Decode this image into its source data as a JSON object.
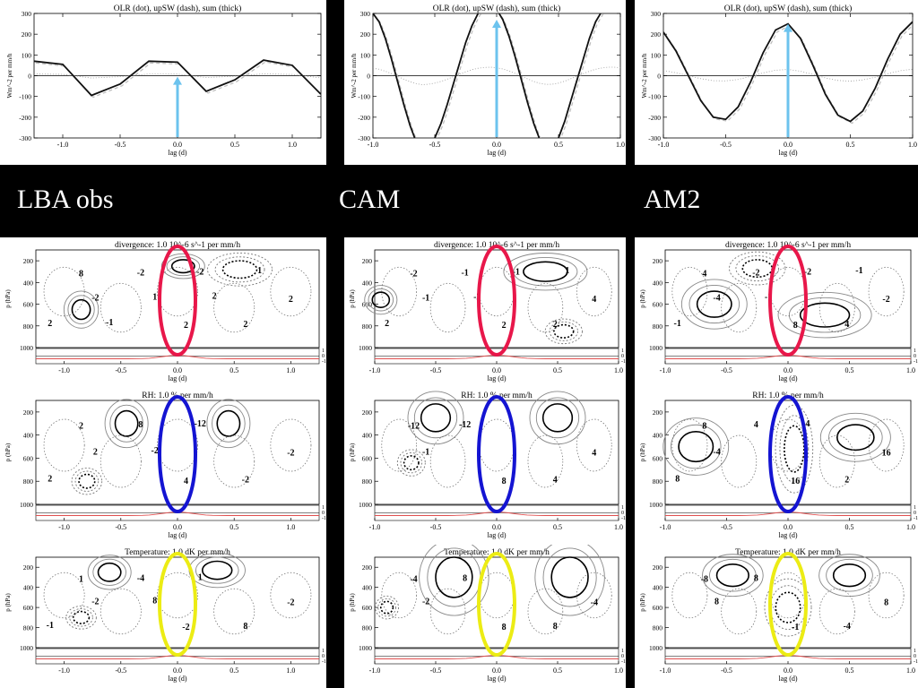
{
  "labels": {
    "col1": "LBA obs",
    "col2": "CAM",
    "col3": "AM2"
  },
  "colors": {
    "background": "#000000",
    "arrow": "#6cc3ee",
    "ellipse_div": "#e8174a",
    "ellipse_rh": "#1414d2",
    "ellipse_temp": "#ecec14",
    "red_line": "#e05050"
  },
  "chart_data": [
    {
      "type": "line",
      "name": "olr_obs",
      "title": "OLR (dot), upSW (dash), sum (thick)",
      "xlabel": "lag (d)",
      "ylabel": "Wm^-2 per mm/h",
      "xlim": [
        -1.25,
        1.25
      ],
      "ylim": [
        -300,
        300
      ],
      "xticks": [
        "-1.0",
        "-0.5",
        "0.0",
        "0.5",
        "1.0"
      ],
      "yticks": [
        "300",
        "200",
        "100",
        "0",
        "-100",
        "-200",
        "-300"
      ],
      "x": [
        -1.25,
        -1.0,
        -0.75,
        -0.5,
        -0.25,
        0.0,
        0.25,
        0.5,
        0.75,
        1.0,
        1.25
      ],
      "series": [
        {
          "values": [
            70,
            55,
            -95,
            -40,
            70,
            65,
            -75,
            -20,
            75,
            50,
            -90
          ]
        }
      ],
      "arrow_x": 0.0
    },
    {
      "type": "line",
      "name": "olr_cam",
      "title": "OLR (dot), upSW (dash), sum (thick)",
      "xlabel": "lag (d)",
      "ylabel": "Wm^-2 per mm/h",
      "xlim": [
        -1.0,
        1.0
      ],
      "ylim": [
        -300,
        300
      ],
      "xticks": [
        "-1.0",
        "-0.5",
        "0.0",
        "0.5",
        "1.0"
      ],
      "yticks": [
        "300",
        "200",
        "100",
        "0",
        "-100",
        "-200",
        "-300"
      ],
      "x": [
        -1.0,
        -0.95,
        -0.9,
        -0.85,
        -0.8,
        -0.75,
        -0.7,
        -0.65,
        -0.6,
        -0.55,
        -0.5,
        -0.45,
        -0.4,
        -0.35,
        -0.3,
        -0.25,
        -0.2,
        -0.15,
        -0.1,
        -0.05,
        0.0,
        0.05,
        0.1,
        0.15,
        0.2,
        0.25,
        0.3,
        0.35,
        0.4,
        0.45,
        0.5,
        0.55,
        0.6,
        0.65,
        0.7,
        0.75,
        0.8,
        0.85,
        0.9,
        0.95,
        1.0
      ],
      "series": [
        {
          "values": [
            300,
            260,
            180,
            80,
            -30,
            -140,
            -240,
            -320,
            -360,
            -340,
            -300,
            -230,
            -140,
            -40,
            60,
            160,
            240,
            300,
            330,
            340,
            320,
            270,
            190,
            90,
            -20,
            -130,
            -230,
            -310,
            -350,
            -340,
            -300,
            -220,
            -120,
            -20,
            80,
            180,
            260,
            310,
            340,
            340,
            320
          ]
        }
      ],
      "arrow_x": 0.0
    },
    {
      "type": "line",
      "name": "olr_am2",
      "title": "OLR (dot), upSW (dash), sum (thick)",
      "xlabel": "lag (d)",
      "ylabel": "Wm^-2 per mm/h",
      "xlim": [
        -1.0,
        1.0
      ],
      "ylim": [
        -300,
        300
      ],
      "xticks": [
        "-1.0",
        "-0.5",
        "0.0",
        "0.5",
        "1.0"
      ],
      "yticks": [
        "300",
        "200",
        "100",
        "0",
        "-100",
        "-200",
        "-300"
      ],
      "x": [
        -1.0,
        -0.9,
        -0.8,
        -0.7,
        -0.6,
        -0.5,
        -0.4,
        -0.3,
        -0.2,
        -0.1,
        0.0,
        0.1,
        0.2,
        0.3,
        0.4,
        0.5,
        0.6,
        0.7,
        0.8,
        0.9,
        1.0
      ],
      "series": [
        {
          "values": [
            210,
            120,
            0,
            -120,
            -200,
            -210,
            -150,
            -30,
            110,
            220,
            250,
            180,
            50,
            -90,
            -190,
            -220,
            -170,
            -60,
            80,
            200,
            260
          ]
        }
      ],
      "arrow_x": 0.0
    },
    {
      "type": "contour",
      "name": "div_obs",
      "title": "divergence: 1.0 10^-6 s^-1 per mm/h",
      "xlabel": "lag (d)",
      "ylabel": "p (hPa)",
      "xlim": [
        -1.25,
        1.25
      ],
      "ylim": [
        1000,
        100
      ],
      "xticks": [
        "-1.0",
        "-0.5",
        "0.0",
        "0.5",
        "1.0"
      ],
      "yticks": [
        "200",
        "400",
        "600",
        "800",
        "1000"
      ],
      "contour_labels": [
        "8",
        "2",
        "2",
        "-2",
        "2",
        "-2",
        "-2",
        "2",
        "1",
        "1",
        "-1",
        "2"
      ]
    },
    {
      "type": "contour",
      "name": "div_cam",
      "title": "divergence: 1.0 10^-6 s^-1 per mm/h",
      "xlabel": "lag (d)",
      "ylabel": "p (hPa)",
      "xlim": [
        -1.0,
        1.0
      ],
      "ylim": [
        1000,
        100
      ],
      "xticks": [
        "-1.0",
        "-0.5",
        "0.0",
        "0.5",
        "1.0"
      ],
      "yticks": [
        "200",
        "400",
        "600",
        "800",
        "1000"
      ],
      "contour_labels": [
        "-2",
        "2",
        "4",
        "-1",
        "2",
        "-1",
        "-1",
        "2",
        "-2",
        "1"
      ]
    },
    {
      "type": "contour",
      "name": "div_am2",
      "title": "divergence: 1.0 10^-6 s^-1 per mm/h",
      "xlabel": "lag (d)",
      "ylabel": "p (hPa)",
      "xlim": [
        -1.0,
        1.0
      ],
      "ylim": [
        1000,
        100
      ],
      "xticks": [
        "-1.0",
        "-0.5",
        "0.0",
        "0.5",
        "1.0"
      ],
      "yticks": [
        "200",
        "400",
        "600",
        "800",
        "1000"
      ],
      "contour_labels": [
        "4",
        "8",
        "-2",
        "-2",
        "4",
        "-4",
        "-2",
        "-1",
        "-1",
        "-1"
      ]
    },
    {
      "type": "contour",
      "name": "rh_obs",
      "title": "RH: 1.0 % per mm/h",
      "xlabel": "lag (d)",
      "ylabel": "p (hPa)",
      "xlim": [
        -1.25,
        1.25
      ],
      "ylim": [
        1000,
        100
      ],
      "xticks": [
        "-1.0",
        "-0.5",
        "0.0",
        "0.5",
        "1.0"
      ],
      "yticks": [
        "200",
        "400",
        "600",
        "800",
        "1000"
      ],
      "contour_labels": [
        "2",
        "4",
        "-2",
        "8",
        "-2",
        "2",
        "-12",
        "2",
        "-2"
      ]
    },
    {
      "type": "contour",
      "name": "rh_cam",
      "title": "RH: 1.0 % per mm/h",
      "xlabel": "lag (d)",
      "ylabel": "p (hPa)",
      "xlim": [
        -1.0,
        1.0
      ],
      "ylim": [
        1000,
        100
      ],
      "xticks": [
        "-1.0",
        "-0.5",
        "0.0",
        "0.5",
        "1.0"
      ],
      "yticks": [
        "200",
        "400",
        "600",
        "800",
        "1000"
      ],
      "contour_labels": [
        "-12",
        "8",
        "4",
        "-12",
        "4",
        "-1"
      ]
    },
    {
      "type": "contour",
      "name": "rh_am2",
      "title": "RH: 1.0 % per mm/h",
      "xlabel": "lag (d)",
      "ylabel": "p (hPa)",
      "xlim": [
        -1.0,
        1.0
      ],
      "ylim": [
        1000,
        100
      ],
      "xticks": [
        "-1.0",
        "-0.5",
        "0.0",
        "0.5",
        "1.0"
      ],
      "yticks": [
        "200",
        "400",
        "600",
        "800",
        "1000"
      ],
      "contour_labels": [
        "8",
        "16",
        "16",
        "4",
        "2",
        "-4",
        "4",
        "8"
      ]
    },
    {
      "type": "contour",
      "name": "temp_obs",
      "title": "Temperature: 1.0 dK per mm/h",
      "xlabel": "lag (d)",
      "ylabel": "p (hPa)",
      "xlim": [
        -1.25,
        1.25
      ],
      "ylim": [
        1000,
        100
      ],
      "xticks": [
        "-1.0",
        "-0.5",
        "0.0",
        "0.5",
        "1.0"
      ],
      "yticks": [
        "200",
        "400",
        "600",
        "800",
        "1000"
      ],
      "contour_labels": [
        "1",
        "-2",
        "-2",
        "-4",
        "8",
        "-2",
        "1",
        "-1",
        "8"
      ]
    },
    {
      "type": "contour",
      "name": "temp_cam",
      "title": "Temperature: 1.0 dK per mm/h",
      "xlabel": "lag (d)",
      "ylabel": "p (hPa)",
      "xlim": [
        -1.0,
        1.0
      ],
      "ylim": [
        1000,
        100
      ],
      "xticks": [
        "-1.0",
        "-0.5",
        "0.0",
        "0.5",
        "1.0"
      ],
      "yticks": [
        "200",
        "400",
        "600",
        "800",
        "1000"
      ],
      "contour_labels": [
        "-4",
        "8",
        "-4",
        "8",
        "8",
        "-2"
      ]
    },
    {
      "type": "contour",
      "name": "temp_am2",
      "title": "Temperature: 1.0 dK per mm/h",
      "xlabel": "lag (d)",
      "ylabel": "p (hPa)",
      "xlim": [
        -1.0,
        1.0
      ],
      "ylim": [
        1000,
        100
      ],
      "xticks": [
        "-1.0",
        "-0.5",
        "0.0",
        "0.5",
        "1.0"
      ],
      "yticks": [
        "200",
        "400",
        "600",
        "800",
        "1000"
      ],
      "contour_labels": [
        "-8",
        "-1",
        "8",
        "8",
        "-4",
        "8"
      ]
    }
  ]
}
